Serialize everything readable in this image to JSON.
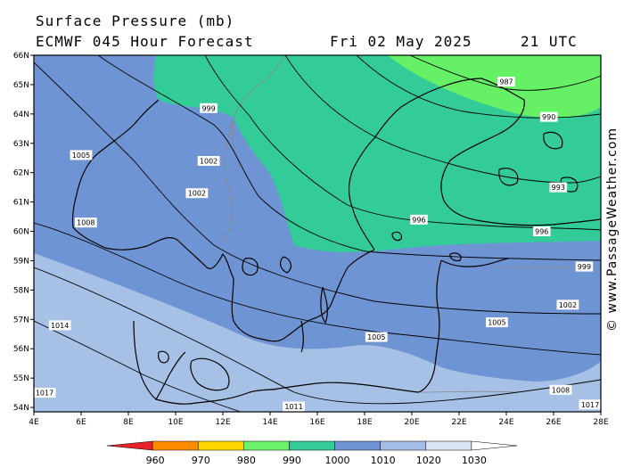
{
  "header": {
    "title": "Surface Pressure (mb)",
    "model": "ECMWF 045 Hour Forecast",
    "date": "Fri 02 May 2025",
    "time": "21 UTC"
  },
  "copyright": "© www.PassageWeather.com",
  "axes": {
    "lat_labels": [
      "66N",
      "65N",
      "64N",
      "63N",
      "62N",
      "61N",
      "60N",
      "59N",
      "58N",
      "57N",
      "56N",
      "55N",
      "54N"
    ],
    "lon_labels": [
      "4E",
      "6E",
      "8E",
      "10E",
      "12E",
      "14E",
      "16E",
      "18E",
      "20E",
      "22E",
      "24E",
      "26E",
      "28E"
    ]
  },
  "isobars": [
    {
      "label": "987",
      "lon": 24.0,
      "lat": 65.1
    },
    {
      "label": "990",
      "lon": 25.8,
      "lat": 63.9
    },
    {
      "label": "993",
      "lon": 26.2,
      "lat": 61.5
    },
    {
      "label": "996",
      "lon": 20.3,
      "lat": 60.4
    },
    {
      "label": "996",
      "lon": 25.5,
      "lat": 60.0
    },
    {
      "label": "999",
      "lon": 11.4,
      "lat": 64.2
    },
    {
      "label": "999",
      "lon": 27.3,
      "lat": 58.8
    },
    {
      "label": "1002",
      "lon": 11.4,
      "lat": 62.4
    },
    {
      "label": "1002",
      "lon": 10.9,
      "lat": 61.3
    },
    {
      "label": "1002",
      "lon": 26.6,
      "lat": 57.5
    },
    {
      "label": "1005",
      "lon": 6.0,
      "lat": 62.6
    },
    {
      "label": "1005",
      "lon": 18.5,
      "lat": 56.4
    },
    {
      "label": "1005",
      "lon": 23.6,
      "lat": 56.9
    },
    {
      "label": "1008",
      "lon": 6.2,
      "lat": 60.3
    },
    {
      "label": "1008",
      "lon": 26.3,
      "lat": 54.6
    },
    {
      "label": "1011",
      "lon": 15.0,
      "lat": 54.0
    },
    {
      "label": "1014",
      "lon": 5.1,
      "lat": 56.8
    },
    {
      "label": "1017",
      "lon": 4.4,
      "lat": 54.5
    },
    {
      "label": "1017",
      "lon": 28.0,
      "lat": 54.1
    }
  ],
  "legend": {
    "labels": [
      "960",
      "970",
      "980",
      "990",
      "1000",
      "1010",
      "1020",
      "1030"
    ],
    "colors": [
      "#e8222a",
      "#ff8c00",
      "#ffd700",
      "#6cf26c",
      "#33cc99",
      "#6f94d4",
      "#a3bde6",
      "#d8e4f4"
    ]
  },
  "fill_colors": {
    "band_980_990": "#66f066",
    "band_990_1000": "#33cc99",
    "band_1000_1010": "#6f94d4",
    "band_1010_1020": "#a6c0e6"
  }
}
